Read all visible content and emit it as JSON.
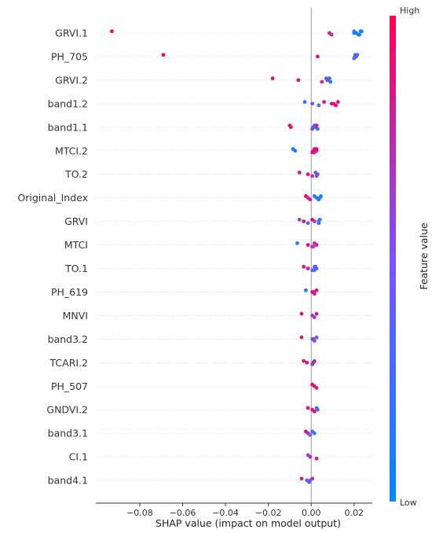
{
  "chart_data": {
    "type": "scatter",
    "subtype": "shap-beeswarm",
    "xlabel": "SHAP value (impact on model output)",
    "xlim": [
      -0.1005,
      0.0285
    ],
    "xticks": [
      -0.08,
      -0.06,
      -0.04,
      -0.02,
      0.0,
      0.02
    ],
    "xtick_labels": [
      "−0.08",
      "−0.06",
      "−0.04",
      "−0.02",
      "0.00",
      "0.02"
    ],
    "grid": false,
    "colorbar": {
      "label": "Feature value",
      "high_label": "High",
      "low_label": "Low",
      "low_color": "#008afb",
      "mid_color": "#7c52ff",
      "high_color": "#ff0052"
    },
    "features": [
      {
        "name": "GRVI.1",
        "points": [
          [
            -0.093,
            1.0
          ],
          [
            0.0085,
            0.85
          ],
          [
            0.0095,
            0.7
          ],
          [
            0.02,
            0.4
          ],
          [
            0.021,
            0.1
          ],
          [
            0.022,
            0.55
          ],
          [
            0.023,
            0.2
          ],
          [
            0.02,
            0.05
          ],
          [
            0.0225,
            0.05
          ],
          [
            0.0235,
            0.05
          ],
          [
            0.021,
            0.0
          ]
        ]
      },
      {
        "name": "PH_705",
        "points": [
          [
            -0.069,
            1.0
          ],
          [
            0.003,
            0.9
          ],
          [
            0.02,
            0.5
          ],
          [
            0.0205,
            0.2
          ],
          [
            0.021,
            0.0
          ],
          [
            0.02,
            0.1
          ],
          [
            0.0215,
            0.35
          ],
          [
            0.0205,
            0.6
          ]
        ]
      },
      {
        "name": "GRVI.2",
        "points": [
          [
            -0.018,
            0.9
          ],
          [
            -0.006,
            0.9
          ],
          [
            0.005,
            0.8
          ],
          [
            0.007,
            0.3
          ],
          [
            0.008,
            0.2
          ],
          [
            0.009,
            0.1
          ],
          [
            0.0085,
            0.25
          ],
          [
            0.0075,
            0.6
          ]
        ]
      },
      {
        "name": "band1.2",
        "points": [
          [
            -0.003,
            0.1
          ],
          [
            0.0005,
            0.5
          ],
          [
            0.0035,
            0.3
          ],
          [
            0.006,
            0.9
          ],
          [
            0.0105,
            0.9
          ],
          [
            0.0115,
            0.95
          ],
          [
            0.0125,
            0.9
          ],
          [
            0.0095,
            0.85
          ]
        ]
      },
      {
        "name": "band1.1",
        "points": [
          [
            -0.01,
            0.9
          ],
          [
            -0.0095,
            0.95
          ],
          [
            0.0005,
            0.7
          ],
          [
            0.0015,
            0.3
          ],
          [
            0.002,
            0.15
          ],
          [
            0.003,
            0.25
          ],
          [
            0.0025,
            0.9
          ],
          [
            0.001,
            0.2
          ]
        ]
      },
      {
        "name": "MTCI.2",
        "points": [
          [
            -0.0085,
            0.1
          ],
          [
            -0.0075,
            0.2
          ],
          [
            0.0005,
            0.8
          ],
          [
            0.0015,
            0.9
          ],
          [
            0.0025,
            0.85
          ],
          [
            0.0015,
            0.7
          ],
          [
            0.0025,
            0.95
          ],
          [
            0.001,
            0.9
          ]
        ]
      },
      {
        "name": "TO.2",
        "points": [
          [
            -0.0055,
            0.9
          ],
          [
            -0.0015,
            0.9
          ],
          [
            0.0005,
            0.7
          ],
          [
            0.002,
            0.4
          ],
          [
            0.003,
            0.3
          ],
          [
            0.0025,
            0.6
          ]
        ]
      },
      {
        "name": "Original_Index",
        "points": [
          [
            -0.0025,
            0.9
          ],
          [
            -0.0015,
            0.85
          ],
          [
            -0.0005,
            0.8
          ],
          [
            0.0015,
            0.2
          ],
          [
            0.0025,
            0.1
          ],
          [
            0.0035,
            0.15
          ],
          [
            0.0045,
            0.1
          ],
          [
            0.004,
            0.05
          ]
        ]
      },
      {
        "name": "GRVI",
        "points": [
          [
            -0.0055,
            0.6
          ],
          [
            -0.0035,
            0.9
          ],
          [
            -0.0015,
            0.3
          ],
          [
            0.0005,
            0.95
          ],
          [
            0.0015,
            0.7
          ],
          [
            0.0035,
            0.1
          ],
          [
            0.004,
            0.05
          ],
          [
            0.0035,
            0.3
          ]
        ]
      },
      {
        "name": "MTCI",
        "points": [
          [
            -0.0065,
            0.1
          ],
          [
            -0.0015,
            0.9
          ],
          [
            0.0005,
            0.8
          ],
          [
            0.0015,
            0.7
          ],
          [
            0.0025,
            0.85
          ],
          [
            0.001,
            0.6
          ]
        ]
      },
      {
        "name": "TO.1",
        "points": [
          [
            -0.0035,
            0.9
          ],
          [
            -0.0015,
            0.85
          ],
          [
            0.0005,
            0.4
          ],
          [
            0.0015,
            0.2
          ],
          [
            0.0025,
            0.15
          ],
          [
            0.0015,
            0.3
          ],
          [
            0.002,
            0.6
          ]
        ]
      },
      {
        "name": "PH_619",
        "points": [
          [
            -0.0025,
            0.1
          ],
          [
            0.0005,
            0.9
          ],
          [
            0.0015,
            0.95
          ],
          [
            0.0025,
            0.9
          ],
          [
            0.0012,
            0.8
          ]
        ]
      },
      {
        "name": "MNVI",
        "points": [
          [
            -0.0045,
            0.9
          ],
          [
            0.0005,
            0.7
          ],
          [
            0.0015,
            0.6
          ],
          [
            0.0025,
            0.8
          ]
        ]
      },
      {
        "name": "band3.2",
        "points": [
          [
            -0.0045,
            0.9
          ],
          [
            0.0005,
            0.2
          ],
          [
            0.0015,
            0.3
          ],
          [
            0.0025,
            0.4
          ],
          [
            0.001,
            0.7
          ],
          [
            0.0015,
            0.5
          ]
        ]
      },
      {
        "name": "TCARI.2",
        "points": [
          [
            -0.0035,
            0.9
          ],
          [
            -0.002,
            0.9
          ],
          [
            0.0005,
            0.3
          ],
          [
            0.0015,
            0.7
          ],
          [
            0.001,
            0.8
          ]
        ]
      },
      {
        "name": "PH_507",
        "points": [
          [
            0.0005,
            0.9
          ],
          [
            0.0015,
            0.9
          ],
          [
            0.0025,
            0.8
          ]
        ]
      },
      {
        "name": "GNDVI.2",
        "points": [
          [
            -0.0015,
            0.9
          ],
          [
            0.0005,
            0.95
          ],
          [
            0.0015,
            0.5
          ],
          [
            0.0025,
            0.1
          ],
          [
            0.003,
            0.4
          ],
          [
            0.0015,
            0.9
          ]
        ]
      },
      {
        "name": "band3.1",
        "points": [
          [
            -0.0025,
            0.9
          ],
          [
            -0.0015,
            0.7
          ],
          [
            -0.0005,
            0.5
          ],
          [
            0.0005,
            0.3
          ],
          [
            0.0015,
            0.2
          ]
        ]
      },
      {
        "name": "CI.1",
        "points": [
          [
            -0.0015,
            0.6
          ],
          [
            -0.0005,
            0.7
          ],
          [
            0.0025,
            0.9
          ]
        ]
      },
      {
        "name": "band4.1",
        "points": [
          [
            -0.0045,
            0.9
          ],
          [
            -0.002,
            0.4
          ],
          [
            -0.001,
            0.3
          ],
          [
            0.0005,
            0.85
          ],
          [
            -0.0005,
            0.5
          ]
        ]
      }
    ]
  }
}
